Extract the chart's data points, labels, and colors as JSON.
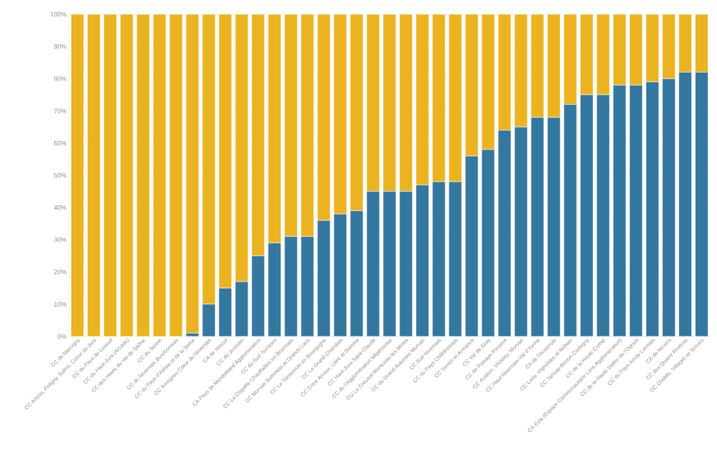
{
  "chart_data": {
    "type": "bar",
    "stacked": true,
    "grid": "y",
    "categories": [
      "CC de Marcigny",
      "CC Arbois, Poligny, Salins, Coeur du Jura",
      "CC du Pays de Luxeuil",
      "CC du Haut-Jura (Arcade)",
      "CC des Hauts du Val de Saône",
      "CC du Serein",
      "CC du Nivernais Bourbonnais",
      "CC du Pays d'Alésia et de la Seine",
      "CC Amognes Cœur du Nivernais",
      "CA de Vesoul",
      "CC du Jovinien",
      "CA Pays de Montbéliard Agglomération",
      "CC du Sud Territoire",
      "CC La Clayette Chauffailles en Brionnais",
      "CC Morvan Sommets et Grands Lacs",
      "CC Le Tonnerrois en Bourgogne",
      "CC Le Grand Charolais",
      "CC Entre Arroux, Loire et Somme",
      "CC Haut-Jura Saint-Claude",
      "CC de l'Agglomération Migennoise",
      "CU Le Creusot Montceau-les-Mines",
      "CC du Grand Autunois Morvan",
      "CC Sud Nivernais",
      "CC du Pays Châtillonnais",
      "CC Serein et Armance",
      "CC Val de Gray",
      "CC de Puisaye-Forterre",
      "CC Avallon, Vézelay, Morvan",
      "CC Haut Nivernais-Val d'Yonne",
      "CA de l'Auxerrois",
      "CC Loire, Vignobles et Nohain",
      "CC Tannay-Brinon-Corbigny",
      "CC de la Haute Comté",
      "CA Ecla (Espace Communautaire Lons Agglomération)",
      "CC de la Haute Vallée de l'Ognon",
      "CC du Pays Arnay Liernais",
      "CA de Nevers",
      "CC des Quatre Rivières",
      "CC Chablis, Villages et Terroirs"
    ],
    "series": [
      {
        "color": "#34779f",
        "values": [
          0,
          0,
          0,
          0,
          0,
          0,
          0,
          1,
          10,
          15,
          17,
          25,
          29,
          31,
          31,
          36,
          38,
          39,
          45,
          45,
          45,
          47,
          48,
          48,
          56,
          58,
          64,
          65,
          68,
          68,
          72,
          75,
          75,
          78,
          78,
          79,
          80,
          82,
          82
        ]
      },
      {
        "color": "#ecb321",
        "values": [
          100,
          100,
          100,
          100,
          100,
          100,
          100,
          99,
          90,
          85,
          83,
          75,
          71,
          69,
          69,
          64,
          62,
          61,
          55,
          55,
          55,
          53,
          52,
          52,
          44,
          42,
          36,
          35,
          32,
          32,
          28,
          25,
          25,
          22,
          22,
          21,
          20,
          18,
          18
        ]
      }
    ],
    "ylim": [
      0,
      100
    ],
    "yticks": [
      {
        "value": 0,
        "label": "0%"
      },
      {
        "value": 10,
        "label": "10%"
      },
      {
        "value": 20,
        "label": "20%"
      },
      {
        "value": 30,
        "label": "30%"
      },
      {
        "value": 40,
        "label": "40%"
      },
      {
        "value": 50,
        "label": "50%"
      },
      {
        "value": 60,
        "label": "60%"
      },
      {
        "value": 70,
        "label": "70%"
      },
      {
        "value": 80,
        "label": "80%"
      },
      {
        "value": 90,
        "label": "90%"
      },
      {
        "value": 100,
        "label": "100%"
      }
    ]
  }
}
